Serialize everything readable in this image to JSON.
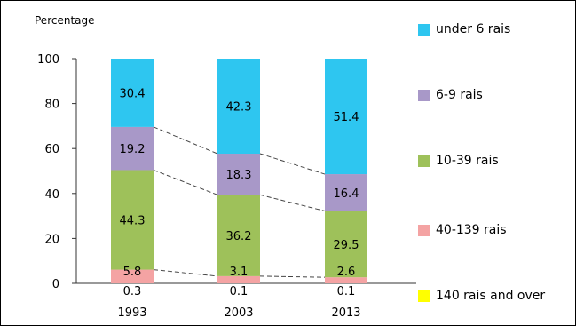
{
  "chart_data": {
    "type": "bar",
    "stacked": true,
    "ylabel": "Percentage",
    "ylim": [
      0,
      100
    ],
    "yticks": [
      0,
      20,
      40,
      60,
      80,
      100
    ],
    "categories": [
      "1993",
      "2003",
      "2013"
    ],
    "series": [
      {
        "name": "140 rais and over",
        "color": "#ffff00",
        "values": [
          0,
          0,
          0
        ],
        "labels": [
          "",
          "",
          ""
        ]
      },
      {
        "name": "40-139 rais",
        "color": "#f4a3a3",
        "values": [
          6.1,
          3.2,
          2.7
        ],
        "labels": [
          "0.3",
          "0.1",
          "0.1"
        ]
      },
      {
        "name": "10-39 rais",
        "color": "#9ec15a",
        "values": [
          44.3,
          36.2,
          29.5
        ],
        "labels": [
          "44.3",
          "36.2",
          "29.5"
        ]
      },
      {
        "name": "6-9 rais",
        "color": "#a898c8",
        "values": [
          19.2,
          18.3,
          16.4
        ],
        "labels": [
          "19.2",
          "18.3",
          "16.4"
        ]
      },
      {
        "name": "under 6 rais",
        "color": "#2ec6f0",
        "values": [
          30.4,
          42.3,
          51.4
        ],
        "labels": [
          "30.4",
          "42.3",
          "51.4"
        ]
      }
    ],
    "extra_labels": {
      "40-139 rais": [
        "5.8",
        "3.1",
        "2.6"
      ]
    },
    "legend": {
      "placement": "right",
      "items": [
        {
          "name": "under 6 rais",
          "color": "#2ec6f0"
        },
        {
          "name": "6-9 rais",
          "color": "#a898c8"
        },
        {
          "name": "10-39 rais",
          "color": "#9ec15a"
        },
        {
          "name": "40-139 rais",
          "color": "#f4a3a3"
        },
        {
          "name": "140 rais and over",
          "color": "#ffff00"
        }
      ]
    }
  }
}
